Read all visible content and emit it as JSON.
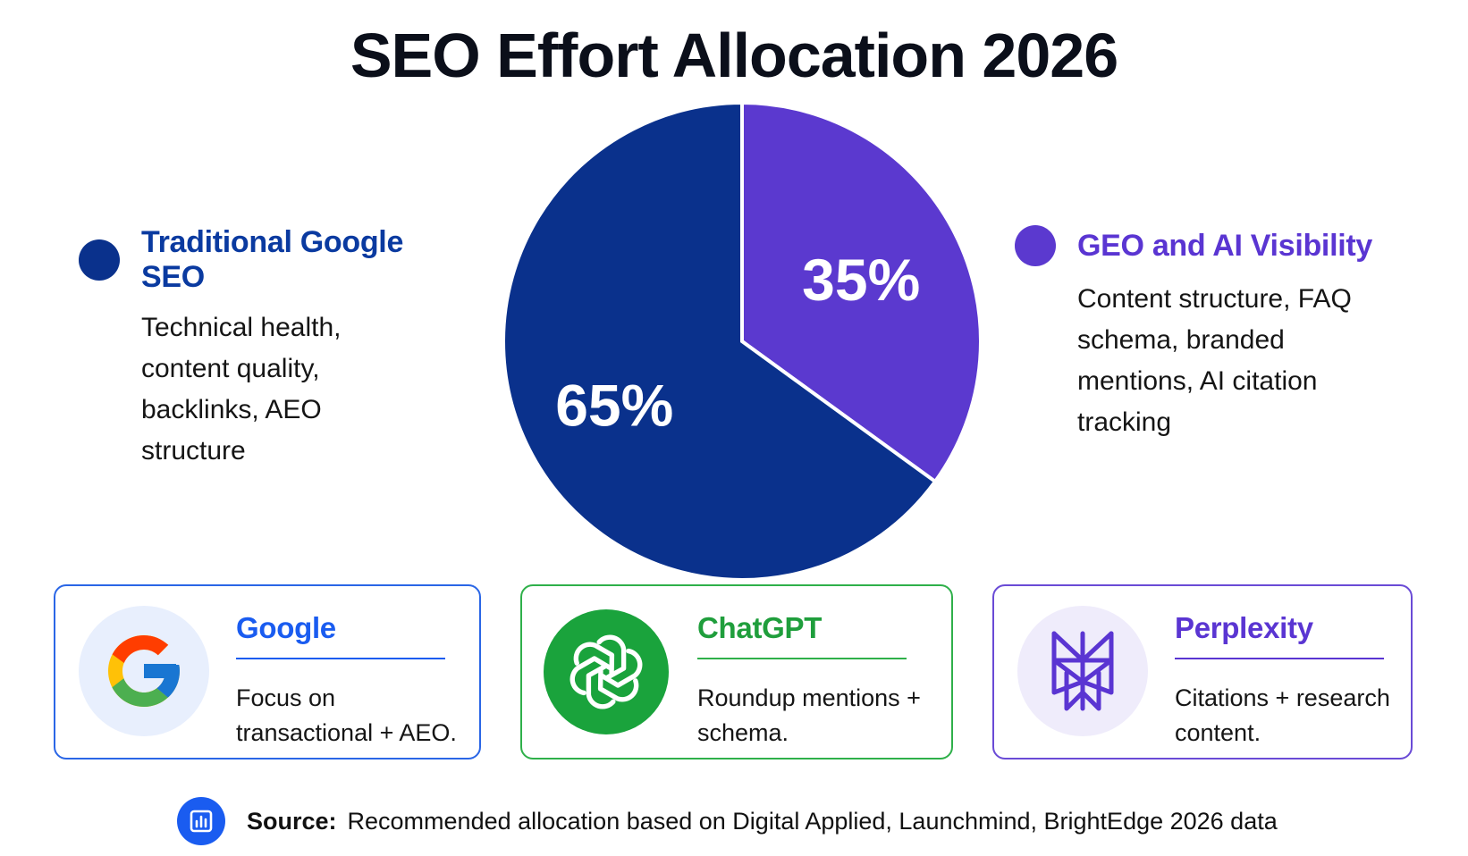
{
  "chart_data": {
    "type": "pie",
    "title": "SEO Effort Allocation 2026",
    "slices": [
      {
        "name": "Traditional Google SEO",
        "value": 65,
        "label": "65%",
        "color": "#0a318c"
      },
      {
        "name": "GEO and AI Visibility",
        "value": 35,
        "label": "35%",
        "color": "#5b39cf"
      }
    ],
    "legend": [
      {
        "title": "Traditional Google SEO",
        "description": "Technical health, content quality, backlinks, AEO structure",
        "color": "#0a318c",
        "text_color": "#0a3aa0"
      },
      {
        "title": "GEO and AI Visibility",
        "description": "Content structure, FAQ schema, branded mentions, AI citation tracking",
        "color": "#5b39cf",
        "text_color": "#5a35d2"
      }
    ]
  },
  "platforms": [
    {
      "name": "Google",
      "description": "Focus on transactional + AEO.",
      "icon": "google-logo-icon",
      "color": "#1a5cf0",
      "border": "#2a66e6",
      "icon_bg": "#e8effd"
    },
    {
      "name": "ChatGPT",
      "description": "Roundup mentions + schema.",
      "icon": "chatgpt-logo-icon",
      "color": "#1f9e3c",
      "border": "#2fb04a",
      "icon_bg": "#1aa33c"
    },
    {
      "name": "Perplexity",
      "description": "Citations + research content.",
      "icon": "perplexity-logo-icon",
      "color": "#5a35d2",
      "border": "#6a4bd6",
      "icon_bg": "#efecfb"
    }
  ],
  "source": {
    "label": "Source:",
    "text": "Recommended allocation based on Digital Applied, Launchmind, BrightEdge 2026 data",
    "icon": "bar-chart-icon"
  }
}
